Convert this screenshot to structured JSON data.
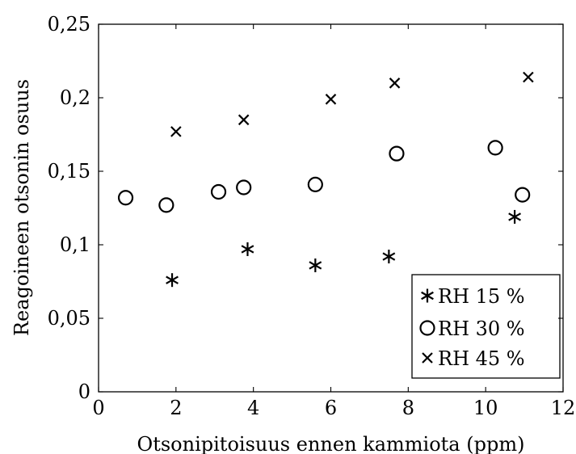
{
  "chart_data": {
    "type": "scatter",
    "xlabel": "Otsonipitoisuus ennen kammiota (ppm)",
    "ylabel": "Reagoineen otsonin osuus",
    "xlim": [
      0,
      12
    ],
    "ylim": [
      0,
      0.25
    ],
    "x_ticks": [
      0,
      2,
      4,
      6,
      8,
      10,
      12
    ],
    "y_ticks": [
      0,
      0.05,
      0.1,
      0.15,
      0.2,
      0.25
    ],
    "x_tick_labels": [
      "0",
      "2",
      "4",
      "6",
      "8",
      "10",
      "12"
    ],
    "y_tick_labels": [
      "0",
      "0,05",
      "0,1",
      "0,15",
      "0,2",
      "0,25"
    ],
    "grid": false,
    "legend_position": "bottom-right",
    "series": [
      {
        "name": "RH 15 %",
        "marker": "asterisk",
        "points": [
          [
            1.9,
            0.076
          ],
          [
            3.85,
            0.097
          ],
          [
            5.6,
            0.086
          ],
          [
            7.5,
            0.092
          ],
          [
            10.75,
            0.119
          ]
        ]
      },
      {
        "name": "RH 30 %",
        "marker": "circle",
        "points": [
          [
            0.7,
            0.132
          ],
          [
            1.75,
            0.127
          ],
          [
            3.1,
            0.136
          ],
          [
            3.75,
            0.139
          ],
          [
            5.6,
            0.141
          ],
          [
            7.7,
            0.162
          ],
          [
            10.25,
            0.166
          ],
          [
            10.95,
            0.134
          ]
        ]
      },
      {
        "name": "RH 45 %",
        "marker": "cross",
        "points": [
          [
            2.0,
            0.177
          ],
          [
            3.75,
            0.185
          ],
          [
            6.0,
            0.199
          ],
          [
            7.65,
            0.21
          ],
          [
            11.1,
            0.214
          ]
        ]
      }
    ]
  }
}
